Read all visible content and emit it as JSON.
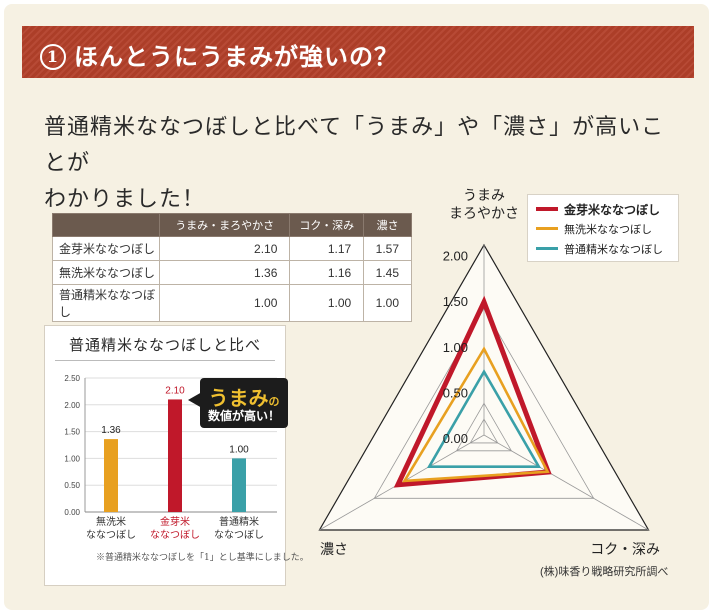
{
  "banner": {
    "number": "1",
    "title": "ほんとうにうまみが強いの？"
  },
  "lead": {
    "line1": "普通精米ななつぼしと比べて「うまみ」や「濃さ」が高いことが",
    "line2": "わかりました！"
  },
  "table": {
    "columns": [
      "",
      "うまみ・まろやかさ",
      "コク・深み",
      "濃さ"
    ],
    "rows": [
      {
        "label": "金芽米ななつぼし",
        "values": [
          "2.10",
          "1.17",
          "1.57"
        ]
      },
      {
        "label": "無洗米ななつぼし",
        "values": [
          "1.36",
          "1.16",
          "1.45"
        ]
      },
      {
        "label": "普通精米ななつぼし",
        "values": [
          "1.00",
          "1.00",
          "1.00"
        ]
      }
    ]
  },
  "callout": {
    "big": "うまみ",
    "small": "の",
    "line2": "数値が高い！"
  },
  "note": "※普通精米ななつぼしを「1」とし基準にしました。",
  "credit": "(株)味香り戦略研究所調べ",
  "colors": {
    "kinme": "#c0182a",
    "musen": "#e8a020",
    "futsu": "#3aa0a8",
    "banner": "#b3402a"
  },
  "chart_data": [
    {
      "type": "bar",
      "title": "普通精米ななつぼしと比べ",
      "categories": [
        {
          "l1": "無洗米",
          "l2": "ななつぼし"
        },
        {
          "l1": "金芽米",
          "l2": "ななつぼし"
        },
        {
          "l1": "普通精米",
          "l2": "ななつぼし"
        }
      ],
      "values": [
        1.36,
        2.1,
        1.0
      ],
      "value_labels": [
        "1.36",
        "2.10",
        "1.00"
      ],
      "bar_colors": [
        "#e8a020",
        "#c0182a",
        "#3aa0a8"
      ],
      "category_colors": [
        "#333333",
        "#c0182a",
        "#333333"
      ],
      "ylim": [
        0,
        2.5
      ],
      "yticks": [
        "0.00",
        "0.50",
        "1.00",
        "1.50",
        "2.00",
        "2.50"
      ]
    },
    {
      "type": "radar",
      "axes": [
        {
          "name": "うまみ\nまろやかさ"
        },
        {
          "name": "コク・深み"
        },
        {
          "name": "濃さ"
        }
      ],
      "rmax": 2.0,
      "ticks": [
        "0.00",
        "0.50",
        "1.00",
        "1.50",
        "2.00"
      ],
      "legend_position": "top-right",
      "series": [
        {
          "name": "金芽米ななつぼし",
          "values": [
            2.1,
            1.17,
            1.57
          ],
          "color": "#c0182a"
        },
        {
          "name": "無洗米ななつぼし",
          "values": [
            1.36,
            1.16,
            1.45
          ],
          "color": "#e8a020"
        },
        {
          "name": "普通精米ななつぼし",
          "values": [
            1.0,
            1.0,
            1.0
          ],
          "color": "#3aa0a8"
        }
      ]
    }
  ]
}
